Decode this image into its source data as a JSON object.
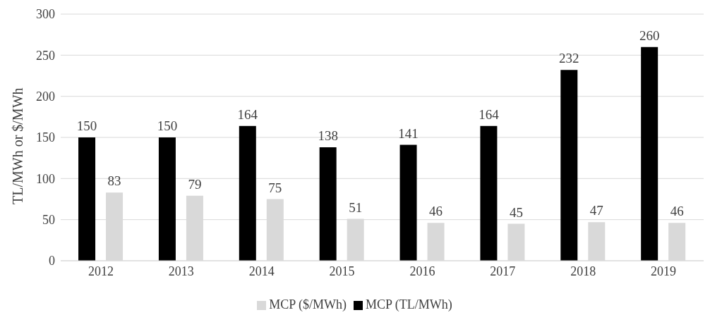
{
  "chart_data": {
    "type": "bar",
    "ylabel": "TL/MWh or $/MWh",
    "categories": [
      "2012",
      "2013",
      "2014",
      "2015",
      "2016",
      "2017",
      "2018",
      "2019"
    ],
    "series": [
      {
        "name": "MCP (TL/MWh)",
        "color": "#000000",
        "values": [
          150,
          150,
          164,
          138,
          141,
          164,
          232,
          260
        ]
      },
      {
        "name": "MCP ($/MWh)",
        "color": "#d9d9d9",
        "values": [
          83,
          79,
          75,
          51,
          46,
          45,
          47,
          46
        ]
      }
    ],
    "ylim": [
      0,
      300
    ],
    "yticks": [
      0,
      50,
      100,
      150,
      200,
      250,
      300
    ],
    "grid": "y",
    "legend": "bottom",
    "data_labels": true
  }
}
